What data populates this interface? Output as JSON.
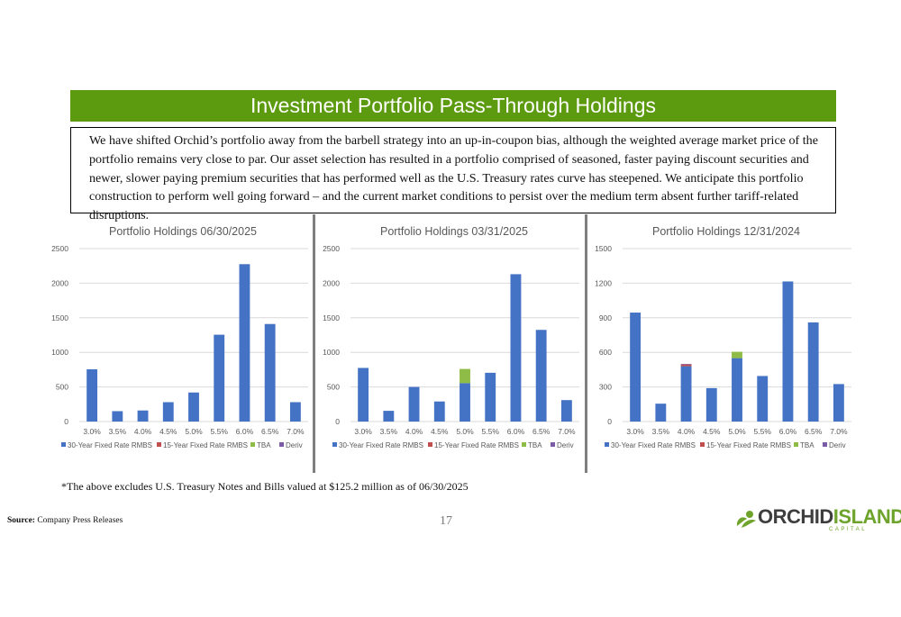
{
  "banner": {
    "title": "Investment Portfolio Pass-Through Holdings"
  },
  "summary": {
    "text": "We have shifted Orchid’s portfolio away from the barbell strategy into an up-in-coupon bias, although the weighted average market price of the portfolio remains very close to par. Our asset selection has resulted in a portfolio comprised of seasoned, faster paying discount securities and newer, slower paying premium securities that has performed well as the U.S. Treasury rates curve has steepened. We anticipate this portfolio construction to perform well going forward – and the current market conditions to persist over the medium term absent further tariff-related disruptions."
  },
  "colors": {
    "banner": "#5c9b0f",
    "series30": "#4472c4",
    "series15": "#c0504d",
    "tba": "#8fbc46",
    "deriv": "#7b5aa6",
    "grid": "#d9d9d9"
  },
  "chart_data": [
    {
      "type": "bar",
      "stacked": true,
      "title": "Portfolio Holdings 06/30/2025",
      "categories": [
        "3.0%",
        "3.5%",
        "4.0%",
        "4.5%",
        "5.0%",
        "5.5%",
        "6.0%",
        "6.5%",
        "7.0%"
      ],
      "ylim": [
        0,
        2500
      ],
      "yticks": [
        0,
        500,
        1000,
        1500,
        2000,
        2500
      ],
      "grid": true,
      "legend_position": "bottom",
      "series": [
        {
          "name": "30-Year Fixed Rate RMBS",
          "color": "#4472c4",
          "values": [
            755,
            150,
            160,
            280,
            420,
            1255,
            2275,
            1410,
            280
          ]
        },
        {
          "name": "15-Year Fixed Rate RMBS",
          "color": "#c0504d",
          "values": [
            0,
            0,
            0,
            0,
            0,
            0,
            0,
            0,
            0
          ]
        },
        {
          "name": "TBA",
          "color": "#8fbc46",
          "values": [
            0,
            0,
            0,
            0,
            0,
            0,
            0,
            0,
            0
          ]
        },
        {
          "name": "Deriv",
          "color": "#7b5aa6",
          "values": [
            0,
            0,
            0,
            0,
            0,
            0,
            0,
            0,
            0
          ]
        }
      ]
    },
    {
      "type": "bar",
      "stacked": true,
      "title": "Portfolio Holdings 03/31/2025",
      "categories": [
        "3.0%",
        "3.5%",
        "4.0%",
        "4.5%",
        "5.0%",
        "5.5%",
        "6.0%",
        "6.5%",
        "7.0%"
      ],
      "ylim": [
        0,
        2500
      ],
      "yticks": [
        0,
        500,
        1000,
        1500,
        2000,
        2500
      ],
      "grid": true,
      "legend_position": "bottom",
      "series": [
        {
          "name": "30-Year Fixed Rate RMBS",
          "color": "#4472c4",
          "values": [
            775,
            155,
            500,
            290,
            555,
            705,
            2130,
            1325,
            310
          ]
        },
        {
          "name": "15-Year Fixed Rate RMBS",
          "color": "#c0504d",
          "values": [
            0,
            0,
            0,
            0,
            0,
            0,
            0,
            0,
            0
          ]
        },
        {
          "name": "TBA",
          "color": "#8fbc46",
          "values": [
            0,
            0,
            0,
            0,
            205,
            0,
            0,
            0,
            0
          ]
        },
        {
          "name": "Deriv",
          "color": "#7b5aa6",
          "values": [
            0,
            0,
            0,
            0,
            0,
            0,
            0,
            0,
            0
          ]
        }
      ]
    },
    {
      "type": "bar",
      "stacked": true,
      "title": "Portfolio Holdings 12/31/2024",
      "categories": [
        "3.0%",
        "3.5%",
        "4.0%",
        "4.5%",
        "5.0%",
        "5.5%",
        "6.0%",
        "6.5%",
        "7.0%"
      ],
      "ylim": [
        0,
        1500
      ],
      "yticks": [
        0,
        300,
        600,
        900,
        1200,
        1500
      ],
      "grid": true,
      "legend_position": "bottom",
      "series": [
        {
          "name": "30-Year Fixed Rate RMBS",
          "color": "#4472c4",
          "values": [
            945,
            155,
            480,
            290,
            550,
            395,
            1215,
            860,
            325
          ]
        },
        {
          "name": "15-Year Fixed Rate RMBS",
          "color": "#c0504d",
          "values": [
            0,
            0,
            15,
            0,
            0,
            0,
            0,
            0,
            0
          ]
        },
        {
          "name": "TBA",
          "color": "#8fbc46",
          "values": [
            0,
            0,
            0,
            0,
            55,
            0,
            0,
            0,
            0
          ]
        },
        {
          "name": "Deriv",
          "color": "#7b5aa6",
          "values": [
            0,
            0,
            5,
            0,
            0,
            0,
            0,
            0,
            0
          ]
        }
      ]
    }
  ],
  "footnote": "*The above excludes U.S. Treasury Notes and Bills valued at $125.2 million as of 06/30/2025",
  "source": {
    "label": "Source:",
    "text": "Company Press Releases"
  },
  "page_number": "17",
  "logo": {
    "part1": "ORCHID",
    "part2": "ISLAND",
    "sub": "CAPITAL"
  }
}
